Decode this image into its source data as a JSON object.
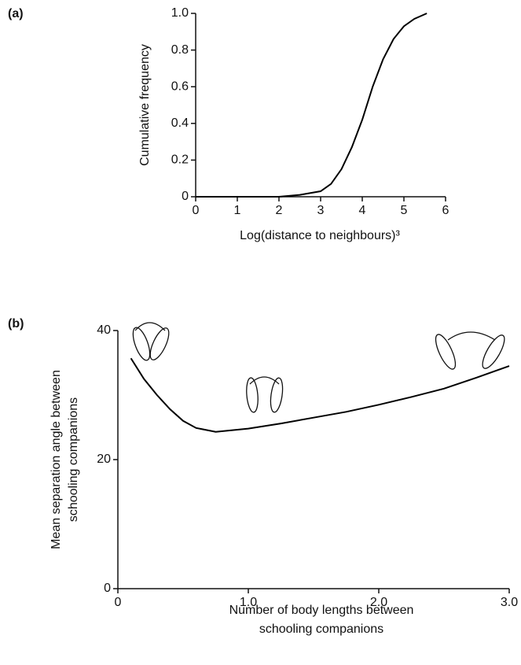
{
  "chart_data": [
    {
      "type": "line",
      "title": "(a)",
      "ylabel": [
        "Cumulative frequency"
      ],
      "xlabel": [
        "Log(distance to neighbours)³"
      ],
      "x": [
        0,
        1,
        2,
        2.5,
        3,
        3.25,
        3.5,
        3.75,
        4,
        4.25,
        4.5,
        4.75,
        5,
        5.25,
        5.55
      ],
      "values": [
        0,
        0,
        0,
        0.01,
        0.03,
        0.07,
        0.15,
        0.27,
        0.42,
        0.6,
        0.75,
        0.86,
        0.93,
        0.97,
        1.0
      ],
      "color": "#000000",
      "xlim": [
        0,
        6
      ],
      "xticks": [
        0,
        1,
        2,
        3,
        4,
        5,
        6
      ],
      "ylim": [
        0,
        1
      ],
      "yticks": [
        0,
        0.2,
        0.4,
        0.6,
        0.8,
        {
          "value": 1,
          "label": "1.0"
        }
      ]
    },
    {
      "type": "line",
      "title": "(b)",
      "ylabel": [
        "Mean separation angle between",
        "schooling companions"
      ],
      "xlabel": [
        "Number of body lengths between",
        "schooling companions"
      ],
      "x": [
        0.1,
        0.2,
        0.3,
        0.4,
        0.5,
        0.6,
        0.75,
        1.0,
        1.25,
        1.5,
        1.75,
        2.0,
        2.25,
        2.5,
        2.75,
        3.0
      ],
      "values": [
        35.7,
        32.5,
        30.0,
        27.8,
        26.0,
        24.9,
        24.3,
        24.8,
        25.6,
        26.5,
        27.4,
        28.5,
        29.7,
        31.0,
        32.7,
        34.5
      ],
      "color": "#000000",
      "xlim": [
        0,
        3
      ],
      "xticks": [
        0,
        {
          "value": 1,
          "label": "1.0"
        },
        {
          "value": 2,
          "label": "2.0"
        },
        {
          "value": 3,
          "label": "3.0"
        }
      ],
      "ylim": [
        0,
        40
      ],
      "yticks": [
        0,
        20,
        40
      ]
    }
  ]
}
